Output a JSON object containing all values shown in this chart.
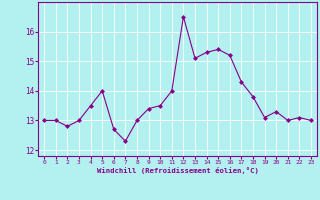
{
  "x": [
    0,
    1,
    2,
    3,
    4,
    5,
    6,
    7,
    8,
    9,
    10,
    11,
    12,
    13,
    14,
    15,
    16,
    17,
    18,
    19,
    20,
    21,
    22,
    23
  ],
  "y": [
    13.0,
    13.0,
    12.8,
    13.0,
    13.5,
    14.0,
    12.7,
    12.3,
    13.0,
    13.4,
    13.5,
    14.0,
    16.5,
    15.1,
    15.3,
    15.4,
    15.2,
    14.3,
    13.8,
    13.1,
    13.3,
    13.0,
    13.1,
    13.0
  ],
  "line_color": "#880088",
  "marker": "D",
  "marker_size": 2.0,
  "bg_color": "#b3f0f0",
  "grid_color": "#ffffff",
  "xlabel": "Windchill (Refroidissement éolien,°C)",
  "xlabel_color": "#880088",
  "tick_color": "#880088",
  "spine_color": "#880088",
  "ylim": [
    11.8,
    17.0
  ],
  "yticks": [
    12,
    13,
    14,
    15,
    16
  ],
  "xlim": [
    -0.5,
    23.5
  ],
  "xticks": [
    0,
    1,
    2,
    3,
    4,
    5,
    6,
    7,
    8,
    9,
    10,
    11,
    12,
    13,
    14,
    15,
    16,
    17,
    18,
    19,
    20,
    21,
    22,
    23
  ]
}
